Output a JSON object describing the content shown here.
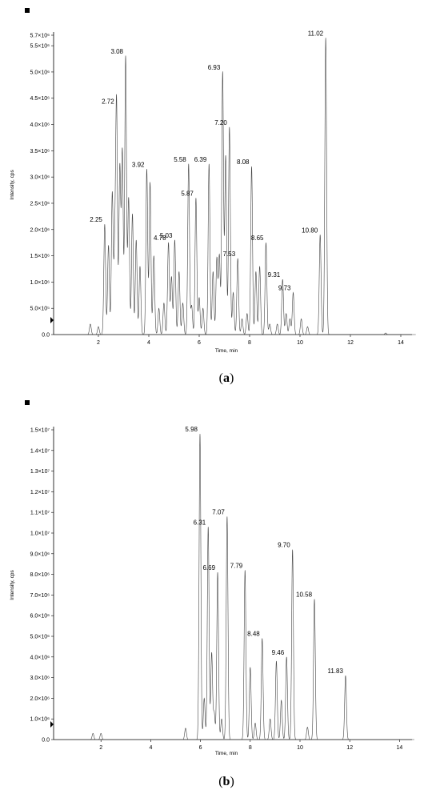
{
  "chart_data": [
    {
      "type": "line",
      "caption": "(a)",
      "xlabel": "Time, min",
      "ylabel": "Intensity, cps",
      "xlim": [
        0,
        15
      ],
      "ylim": [
        0,
        5700000
      ],
      "x_ticks": [
        2,
        4,
        6,
        8,
        10,
        12,
        14
      ],
      "y_ticks": [
        0,
        500000,
        1000000,
        1500000,
        2000000,
        2500000,
        3000000,
        3500000,
        4000000,
        4500000,
        5000000,
        5500000,
        5700000
      ],
      "y_tick_labels": [
        "0.0",
        "5.0×10⁵",
        "1.0×10⁶",
        "1.5×10⁶",
        "2.0×10⁶",
        "2.5×10⁶",
        "3.0×10⁶",
        "3.5×10⁶",
        "4.0×10⁶",
        "4.5×10⁶",
        "5.0×10⁶",
        "5.5×10⁶",
        "5.7×10⁶"
      ],
      "peaks": [
        {
          "x": 1.68,
          "y": 200000
        },
        {
          "x": 2.0,
          "y": 150000
        },
        {
          "x": 2.25,
          "y": 2100000
        },
        {
          "x": 2.4,
          "y": 1700000
        },
        {
          "x": 2.55,
          "y": 2700000
        },
        {
          "x": 2.65,
          "y": 1500000
        },
        {
          "x": 2.72,
          "y": 4350000
        },
        {
          "x": 2.85,
          "y": 3200000
        },
        {
          "x": 2.95,
          "y": 3500000
        },
        {
          "x": 3.08,
          "y": 5300000
        },
        {
          "x": 3.2,
          "y": 2600000
        },
        {
          "x": 3.35,
          "y": 2300000
        },
        {
          "x": 3.5,
          "y": 1800000
        },
        {
          "x": 3.65,
          "y": 1300000
        },
        {
          "x": 3.92,
          "y": 3150000
        },
        {
          "x": 4.05,
          "y": 2900000
        },
        {
          "x": 4.2,
          "y": 1500000
        },
        {
          "x": 4.4,
          "y": 500000
        },
        {
          "x": 4.6,
          "y": 600000
        },
        {
          "x": 4.78,
          "y": 1750000
        },
        {
          "x": 4.9,
          "y": 1100000
        },
        {
          "x": 5.03,
          "y": 1800000
        },
        {
          "x": 5.2,
          "y": 1200000
        },
        {
          "x": 5.35,
          "y": 600000
        },
        {
          "x": 5.58,
          "y": 3250000
        },
        {
          "x": 5.7,
          "y": 550000
        },
        {
          "x": 5.87,
          "y": 2600000
        },
        {
          "x": 6.0,
          "y": 700000
        },
        {
          "x": 6.15,
          "y": 500000
        },
        {
          "x": 6.39,
          "y": 3250000
        },
        {
          "x": 6.55,
          "y": 1200000
        },
        {
          "x": 6.7,
          "y": 1450000
        },
        {
          "x": 6.8,
          "y": 1500000
        },
        {
          "x": 6.93,
          "y": 5000000
        },
        {
          "x": 7.05,
          "y": 3400000
        },
        {
          "x": 7.2,
          "y": 3950000
        },
        {
          "x": 7.35,
          "y": 800000
        },
        {
          "x": 7.53,
          "y": 1450000
        },
        {
          "x": 7.7,
          "y": 300000
        },
        {
          "x": 7.9,
          "y": 400000
        },
        {
          "x": 8.08,
          "y": 3200000
        },
        {
          "x": 8.25,
          "y": 1200000
        },
        {
          "x": 8.4,
          "y": 1300000
        },
        {
          "x": 8.65,
          "y": 1750000
        },
        {
          "x": 8.8,
          "y": 200000
        },
        {
          "x": 9.1,
          "y": 200000
        },
        {
          "x": 9.31,
          "y": 1050000
        },
        {
          "x": 9.45,
          "y": 400000
        },
        {
          "x": 9.6,
          "y": 300000
        },
        {
          "x": 9.73,
          "y": 800000
        },
        {
          "x": 10.05,
          "y": 300000
        },
        {
          "x": 10.3,
          "y": 150000
        },
        {
          "x": 10.8,
          "y": 1900000
        },
        {
          "x": 11.02,
          "y": 5650000
        },
        {
          "x": 13.4,
          "y": 30000
        }
      ],
      "annotations": [
        {
          "x": 2.25,
          "y": 2100000,
          "text": "2.25"
        },
        {
          "x": 2.72,
          "y": 4350000,
          "text": "2.72"
        },
        {
          "x": 3.08,
          "y": 5300000,
          "text": "3.08"
        },
        {
          "x": 3.92,
          "y": 3150000,
          "text": "3.92"
        },
        {
          "x": 4.78,
          "y": 1750000,
          "text": "4.78"
        },
        {
          "x": 5.03,
          "y": 1800000,
          "text": "5.03"
        },
        {
          "x": 5.58,
          "y": 3250000,
          "text": "5.58"
        },
        {
          "x": 5.87,
          "y": 2600000,
          "text": "5.87"
        },
        {
          "x": 6.39,
          "y": 3250000,
          "text": "6.39"
        },
        {
          "x": 6.93,
          "y": 5000000,
          "text": "6.93"
        },
        {
          "x": 7.2,
          "y": 3950000,
          "text": "7.20"
        },
        {
          "x": 7.53,
          "y": 1450000,
          "text": "7.53"
        },
        {
          "x": 8.08,
          "y": 3200000,
          "text": "8.08"
        },
        {
          "x": 8.65,
          "y": 1750000,
          "text": "8.65"
        },
        {
          "x": 9.31,
          "y": 1050000,
          "text": "9.31"
        },
        {
          "x": 9.73,
          "y": 800000,
          "text": "9.73"
        },
        {
          "x": 10.8,
          "y": 1900000,
          "text": "10.80"
        },
        {
          "x": 11.02,
          "y": 5650000,
          "text": "11.02"
        }
      ]
    },
    {
      "type": "line",
      "caption": "(b)",
      "xlabel": "Time, min",
      "ylabel": "Intensity, cps",
      "xlim": [
        0,
        15
      ],
      "ylim": [
        0,
        15000000
      ],
      "x_ticks": [
        2,
        4,
        6,
        8,
        10,
        12,
        14
      ],
      "y_ticks": [
        0,
        1000000,
        2000000,
        3000000,
        4000000,
        5000000,
        6000000,
        7000000,
        8000000,
        9000000,
        10000000,
        11000000,
        12000000,
        13000000,
        14000000,
        15000000
      ],
      "y_tick_labels": [
        "0.0",
        "1.0×10⁶",
        "2.0×10⁶",
        "3.0×10⁶",
        "4.0×10⁶",
        "5.0×10⁶",
        "6.0×10⁶",
        "7.0×10⁶",
        "8.0×10⁶",
        "9.0×10⁶",
        "1.0×10⁷",
        "1.1×10⁷",
        "1.2×10⁷",
        "1.3×10⁷",
        "1.4×10⁷",
        "1.5×10⁷"
      ],
      "peaks": [
        {
          "x": 1.68,
          "y": 300000
        },
        {
          "x": 2.0,
          "y": 300000
        },
        {
          "x": 5.4,
          "y": 550000
        },
        {
          "x": 5.98,
          "y": 14800000
        },
        {
          "x": 6.15,
          "y": 2000000
        },
        {
          "x": 6.31,
          "y": 10300000
        },
        {
          "x": 6.45,
          "y": 4200000
        },
        {
          "x": 6.55,
          "y": 1300000
        },
        {
          "x": 6.69,
          "y": 8100000
        },
        {
          "x": 6.85,
          "y": 1000000
        },
        {
          "x": 7.07,
          "y": 10800000
        },
        {
          "x": 7.79,
          "y": 8200000
        },
        {
          "x": 8.0,
          "y": 3500000
        },
        {
          "x": 8.2,
          "y": 800000
        },
        {
          "x": 8.48,
          "y": 4900000
        },
        {
          "x": 8.8,
          "y": 1000000
        },
        {
          "x": 9.05,
          "y": 3800000
        },
        {
          "x": 9.25,
          "y": 1900000
        },
        {
          "x": 9.46,
          "y": 4000000
        },
        {
          "x": 9.7,
          "y": 9200000
        },
        {
          "x": 10.3,
          "y": 600000
        },
        {
          "x": 10.58,
          "y": 6800000
        },
        {
          "x": 11.83,
          "y": 3100000
        }
      ],
      "annotations": [
        {
          "x": 5.98,
          "y": 14800000,
          "text": "5.98"
        },
        {
          "x": 6.31,
          "y": 10300000,
          "text": "6.31"
        },
        {
          "x": 6.69,
          "y": 8100000,
          "text": "6.69"
        },
        {
          "x": 7.07,
          "y": 10800000,
          "text": "7.07"
        },
        {
          "x": 7.79,
          "y": 8200000,
          "text": "7.79"
        },
        {
          "x": 8.48,
          "y": 4900000,
          "text": "8.48"
        },
        {
          "x": 9.46,
          "y": 4000000,
          "text": "9.46"
        },
        {
          "x": 9.7,
          "y": 9200000,
          "text": "9.70"
        },
        {
          "x": 10.58,
          "y": 6800000,
          "text": "10.58"
        },
        {
          "x": 11.83,
          "y": 3100000,
          "text": "11.83"
        }
      ]
    }
  ]
}
